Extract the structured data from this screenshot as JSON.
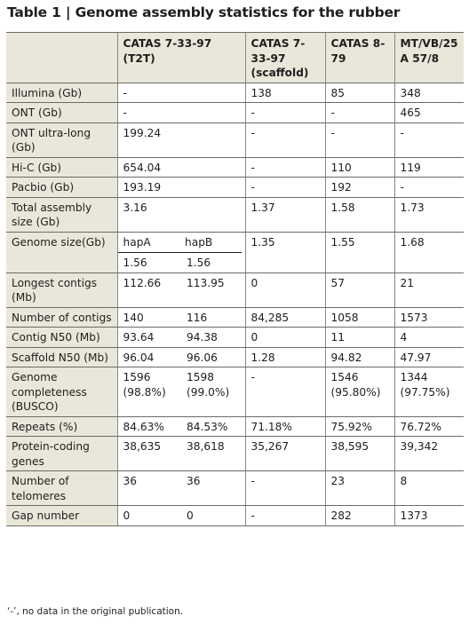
{
  "title": "Table 1 | Genome assembly statistics for the rubber",
  "headers": [
    "",
    "CATAS 7-33-97 (T2T)",
    "CATAS 7-33-97 (scaffold)",
    "CATAS 8-79",
    "MT/VB/25 A 57/8"
  ],
  "rows": [
    {
      "label": "Illumina (Gb)",
      "t2t": "-",
      "t2t_b": "",
      "merge": true,
      "scaffold": "138",
      "c879": "85",
      "mtvb": "348"
    },
    {
      "label": "ONT (Gb)",
      "t2t": "-",
      "t2t_b": "",
      "merge": true,
      "scaffold": "-",
      "c879": "-",
      "mtvb": "465"
    },
    {
      "label": "ONT ultra-long (Gb)",
      "t2t": "199.24",
      "t2t_b": "",
      "merge": true,
      "scaffold": "-",
      "c879": "-",
      "mtvb": "-"
    },
    {
      "label": "Hi-C (Gb)",
      "t2t": "654.04",
      "t2t_b": "",
      "merge": true,
      "scaffold": "-",
      "c879": "110",
      "mtvb": "119"
    },
    {
      "label": "Pacbio (Gb)",
      "t2t": "193.19",
      "t2t_b": "",
      "merge": true,
      "scaffold": "-",
      "c879": "192",
      "mtvb": "-"
    },
    {
      "label": "Total assembly size (Gb)",
      "t2t": "3.16",
      "t2t_b": "",
      "merge": true,
      "scaffold": "1.37",
      "c879": "1.58",
      "mtvb": "1.73"
    },
    {
      "label": "Genome size(Gb)",
      "genome": true,
      "hapA_label": "hapA",
      "hapB_label": "hapB",
      "hapA": "1.56",
      "hapB": "1.56",
      "scaffold": "1.35",
      "c879": "1.55",
      "mtvb": "1.68"
    },
    {
      "label": "Longest contigs (Mb)",
      "t2t": "112.66",
      "t2t_b": "113.95",
      "merge": false,
      "scaffold": "0",
      "c879": "57",
      "mtvb": "21"
    },
    {
      "label": "Number of contigs",
      "t2t": "140",
      "t2t_b": "116",
      "merge": false,
      "scaffold": "84,285",
      "c879": "1058",
      "mtvb": "1573"
    },
    {
      "label": "Contig N50 (Mb)",
      "t2t": "93.64",
      "t2t_b": "94.38",
      "merge": false,
      "scaffold": "0",
      "c879": "11",
      "mtvb": "4"
    },
    {
      "label": "Scaffold N50 (Mb)",
      "t2t": "96.04",
      "t2t_b": "96.06",
      "merge": false,
      "scaffold": "1.28",
      "c879": "94.82",
      "mtvb": "47.97"
    },
    {
      "label": "Genome completeness (BUSCO)",
      "t2t": "1596 (98.8%)",
      "t2t_b": "1598 (99.0%)",
      "merge": false,
      "scaffold": "-",
      "c879": "1546 (95.80%)",
      "mtvb": "1344 (97.75%)"
    },
    {
      "label": "Repeats (%)",
      "t2t": "84.63%",
      "t2t_b": "84.53%",
      "merge": false,
      "scaffold": "71.18%",
      "c879": "75.92%",
      "mtvb": "76.72%"
    },
    {
      "label": "Protein-coding genes",
      "t2t": "38,635",
      "t2t_b": "38,618",
      "merge": false,
      "scaffold": "35,267",
      "c879": "38,595",
      "mtvb": "39,342"
    },
    {
      "label": "Number of telomeres",
      "t2t": "36",
      "t2t_b": "36",
      "merge": false,
      "scaffold": "-",
      "c879": "23",
      "mtvb": "8"
    },
    {
      "label": "Gap number",
      "t2t": "0",
      "t2t_b": "0",
      "merge": false,
      "scaffold": "-",
      "c879": "282",
      "mtvb": "1373"
    }
  ],
  "footnote": "‘-’, no data in the original publication."
}
